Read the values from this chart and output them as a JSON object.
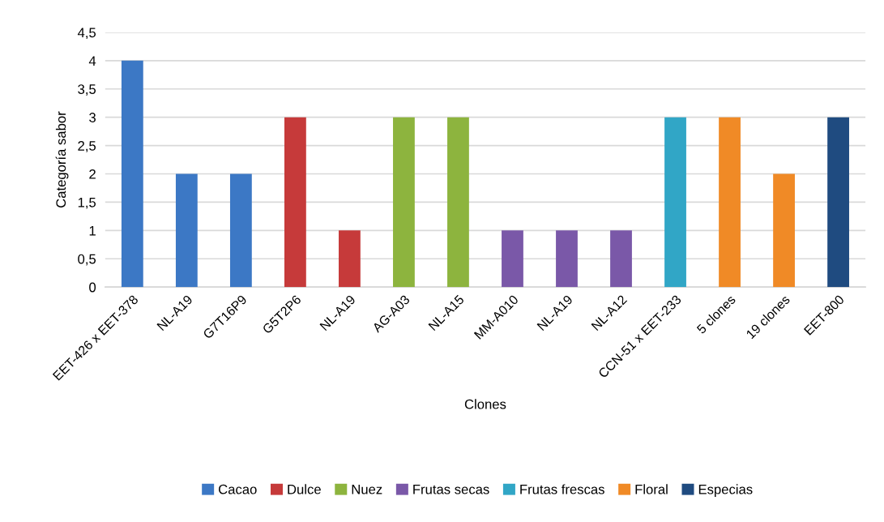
{
  "chart_data": {
    "type": "bar",
    "xlabel": "Clones",
    "ylabel": "Categoría sabor",
    "categories": [
      "EET-426 x EET-378",
      "NL-A19",
      "G7T16P9",
      "G5T2P6",
      "NL-A19",
      "AG-A03",
      "NL-A15",
      "MM-A010",
      "NL-A19",
      "NL-A12",
      "CCN-51 x EET-233",
      "5 clones",
      "19 clones",
      "EET-800"
    ],
    "series": [
      {
        "name": "Cacao",
        "color": "#3c78c5",
        "values": [
          4,
          2,
          2,
          null,
          null,
          null,
          null,
          null,
          null,
          null,
          null,
          null,
          null,
          null
        ]
      },
      {
        "name": "Dulce",
        "color": "#c63a3a",
        "values": [
          null,
          null,
          null,
          3,
          1,
          null,
          null,
          null,
          null,
          null,
          null,
          null,
          null,
          null
        ]
      },
      {
        "name": "Nuez",
        "color": "#8db43e",
        "values": [
          null,
          null,
          null,
          null,
          null,
          3,
          3,
          null,
          null,
          null,
          null,
          null,
          null,
          null
        ]
      },
      {
        "name": "Frutas secas",
        "color": "#7a58a8",
        "values": [
          null,
          null,
          null,
          null,
          null,
          null,
          null,
          1,
          1,
          1,
          null,
          null,
          null,
          null
        ]
      },
      {
        "name": "Frutas frescas",
        "color": "#31a6c6",
        "values": [
          null,
          null,
          null,
          null,
          null,
          null,
          null,
          null,
          null,
          null,
          3,
          null,
          null,
          null
        ]
      },
      {
        "name": "Floral",
        "color": "#f08a26",
        "values": [
          null,
          null,
          null,
          null,
          null,
          null,
          null,
          null,
          null,
          null,
          null,
          3,
          2,
          null
        ]
      },
      {
        "name": "Especias",
        "color": "#1f4b80",
        "values": [
          null,
          null,
          null,
          null,
          null,
          null,
          null,
          null,
          null,
          null,
          null,
          null,
          null,
          3
        ]
      }
    ],
    "ylim": [
      0,
      4.5
    ],
    "yticks": [
      0,
      {
        "value": 0.5,
        "label": "0,5"
      },
      1,
      {
        "value": 1.5,
        "label": "1,5"
      },
      2,
      {
        "value": 2.5,
        "label": "2,5"
      },
      3,
      {
        "value": 3.5,
        "label": "3,5"
      },
      4,
      {
        "value": 4.5,
        "label": "4,5"
      }
    ],
    "grid": "y",
    "legend": "bottom"
  }
}
